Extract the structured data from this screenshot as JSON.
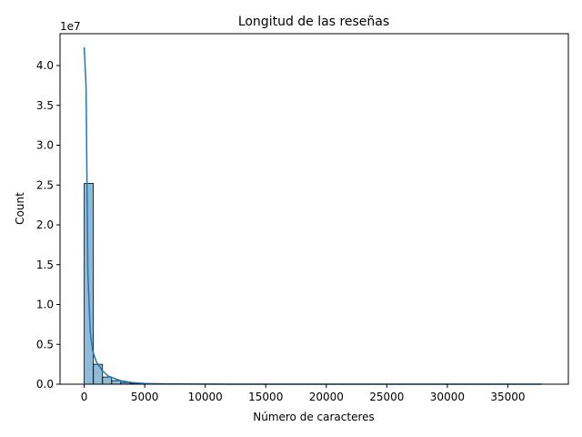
{
  "chart_data": {
    "type": "bar",
    "title": "Longitud de las reseñas",
    "xlabel": "Número de caracteres",
    "ylabel": "Count",
    "y_offset_label": "1e7",
    "xlim": [
      -2000,
      40000
    ],
    "ylim": [
      0,
      44000000
    ],
    "x_ticks": [
      0,
      5000,
      10000,
      15000,
      20000,
      25000,
      30000,
      35000
    ],
    "y_ticks": [
      0,
      5000000,
      10000000,
      15000000,
      20000000,
      25000000,
      30000000,
      35000000,
      40000000
    ],
    "x_tick_labels": [
      "0",
      "5000",
      "10000",
      "15000",
      "20000",
      "25000",
      "30000",
      "35000"
    ],
    "y_tick_labels": [
      "0.0",
      "0.5",
      "1.0",
      "1.5",
      "2.0",
      "2.5",
      "3.0",
      "3.5",
      "4.0"
    ],
    "bin_width": 756,
    "bins": [
      {
        "x0": 0,
        "x1": 756,
        "count": 25200000
      },
      {
        "x0": 756,
        "x1": 1512,
        "count": 2500000
      },
      {
        "x0": 1512,
        "x1": 2268,
        "count": 900000
      },
      {
        "x0": 2268,
        "x1": 3024,
        "count": 450000
      },
      {
        "x0": 3024,
        "x1": 3780,
        "count": 220000
      },
      {
        "x0": 3780,
        "x1": 4536,
        "count": 110000
      },
      {
        "x0": 4536,
        "x1": 5292,
        "count": 60000
      },
      {
        "x0": 5292,
        "x1": 6048,
        "count": 30000
      },
      {
        "x0": 6048,
        "x1": 6804,
        "count": 15000
      },
      {
        "x0": 6804,
        "x1": 7560,
        "count": 8000
      }
    ],
    "kde": {
      "x": [
        0,
        150,
        300,
        500,
        700,
        1000,
        1500,
        2000,
        3000,
        4000,
        5000,
        7000,
        10000,
        15000,
        20000,
        25000,
        30000,
        35000,
        37800
      ],
      "y": [
        42300000,
        37500000,
        14000000,
        6500000,
        4200000,
        2800000,
        1700000,
        1000000,
        450000,
        200000,
        90000,
        30000,
        10000,
        3000,
        1000,
        500,
        300,
        200,
        100
      ]
    },
    "colors": {
      "bar_fill": "#1f77b4",
      "bar_fill_opacity": 0.5,
      "bar_edge": "#000000",
      "kde_line": "#1f77b4"
    },
    "grid": false,
    "legend": "none"
  }
}
